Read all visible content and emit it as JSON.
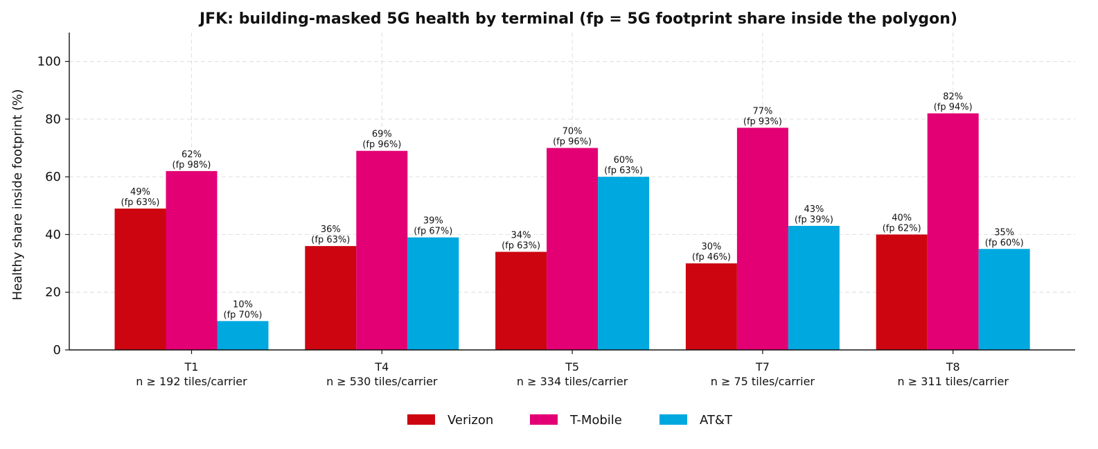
{
  "chart_data": {
    "type": "bar",
    "title": "JFK: building-masked 5G health by terminal (fp = 5G footprint share inside the polygon)",
    "xlabel": "",
    "ylabel": "Healthy share inside footprint (%)",
    "ylim": [
      0,
      110
    ],
    "yticks": [
      0,
      20,
      40,
      60,
      80,
      100
    ],
    "grid": true,
    "legend_position": "bottom-center",
    "categories": [
      "T1",
      "T4",
      "T5",
      "T7",
      "T8"
    ],
    "category_sublabels": [
      "n ≥ 192 tiles/carrier",
      "n ≥ 530 tiles/carrier",
      "n ≥ 334 tiles/carrier",
      "n ≥ 75 tiles/carrier",
      "n ≥ 311 tiles/carrier"
    ],
    "series": [
      {
        "name": "Verizon",
        "color": "#cc0510",
        "values": [
          49,
          36,
          34,
          30,
          40
        ],
        "labels": [
          "49%",
          "36%",
          "34%",
          "30%",
          "40%"
        ],
        "fp_labels": [
          "(fp 63%)",
          "(fp 63%)",
          "(fp 63%)",
          "(fp 46%)",
          "(fp 62%)"
        ]
      },
      {
        "name": "T-Mobile",
        "color": "#e20074",
        "values": [
          62,
          69,
          70,
          77,
          82
        ],
        "labels": [
          "62%",
          "69%",
          "70%",
          "77%",
          "82%"
        ],
        "fp_labels": [
          "(fp 98%)",
          "(fp 96%)",
          "(fp 96%)",
          "(fp 93%)",
          "(fp 94%)"
        ]
      },
      {
        "name": "AT&T",
        "color": "#00a8e0",
        "values": [
          10,
          39,
          60,
          43,
          35
        ],
        "labels": [
          "10%",
          "39%",
          "60%",
          "43%",
          "35%"
        ],
        "fp_labels": [
          "(fp 70%)",
          "(fp 67%)",
          "(fp 63%)",
          "(fp 39%)",
          "(fp 60%)"
        ]
      }
    ]
  }
}
